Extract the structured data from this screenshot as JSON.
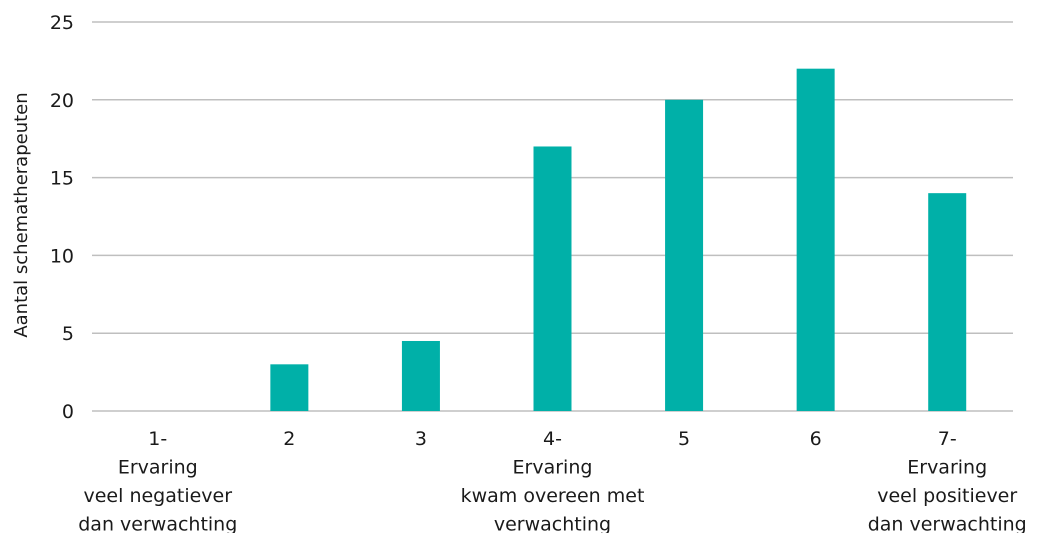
{
  "chart_data": {
    "type": "bar",
    "title": "",
    "xlabel": "",
    "ylabel": "Aantal schematherapeuten",
    "ylim": [
      0,
      25
    ],
    "yticks": [
      0,
      5,
      10,
      15,
      20,
      25
    ],
    "grid": true,
    "bar_color": "#00B0A8",
    "categories": [
      [
        "1-",
        "Ervaring",
        "veel negatiever",
        "dan verwachting"
      ],
      [
        "2"
      ],
      [
        "3"
      ],
      [
        "4-",
        "Ervaring",
        "kwam overeen met",
        "verwachting"
      ],
      [
        "5"
      ],
      [
        "6"
      ],
      [
        "7-",
        "Ervaring",
        "veel positiever",
        "dan verwachting"
      ]
    ],
    "values": [
      0,
      3,
      4.5,
      17,
      20,
      22,
      14
    ]
  }
}
